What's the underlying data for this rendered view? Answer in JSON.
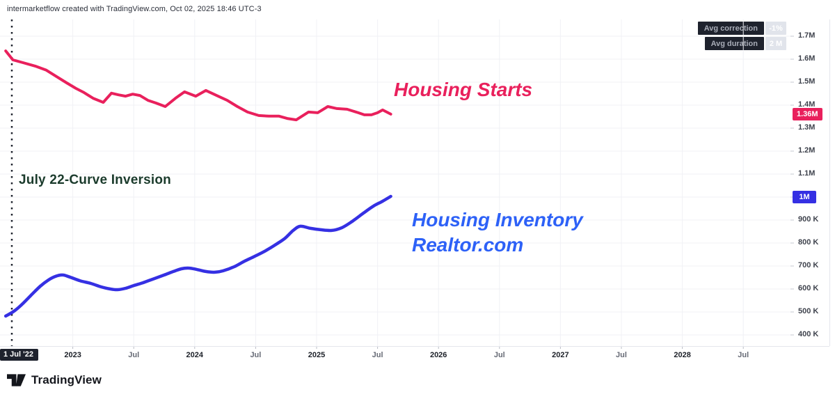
{
  "attribution": "intermarketflow created with TradingView.com, Oct 02, 2025 18:46 UTC-3",
  "stats_panel": {
    "rows": [
      {
        "label": "Avg correction",
        "value": "-1%"
      },
      {
        "label": "Avg duration",
        "value": "2 M"
      }
    ]
  },
  "annotations": {
    "housing_starts": "Housing Starts",
    "curve_inversion": "July 22-Curve Inversion",
    "housing_inventory_line1": "Housing Inventory",
    "housing_inventory_line2": "Realtor.com"
  },
  "colors": {
    "housing_starts": "#E9205C",
    "housing_inventory": "#3530E3",
    "inventory_label_text": "#2D61F7",
    "dark_badge": "#1E222D",
    "grid": "#f0f1f5"
  },
  "price_axis": {
    "labels": [
      {
        "text": "1.7M",
        "value_k": 1700
      },
      {
        "text": "1.6M",
        "value_k": 1600
      },
      {
        "text": "1.5M",
        "value_k": 1500
      },
      {
        "text": "1.4M",
        "value_k": 1400
      },
      {
        "text": "1.3M",
        "value_k": 1300
      },
      {
        "text": "1.2M",
        "value_k": 1200
      },
      {
        "text": "1.1M",
        "value_k": 1100
      },
      {
        "text": "900 K",
        "value_k": 900
      },
      {
        "text": "800 K",
        "value_k": 800
      },
      {
        "text": "700 K",
        "value_k": 700
      },
      {
        "text": "600 K",
        "value_k": 600
      },
      {
        "text": "500 K",
        "value_k": 500
      },
      {
        "text": "400 K",
        "value_k": 400
      }
    ],
    "badges": [
      {
        "text": "1.36M",
        "value_k": 1361,
        "color": "#E9205C",
        "series": "housing-starts"
      },
      {
        "text": "1M",
        "value_k": 1000,
        "color": "#3530E3",
        "series": "housing-inventory"
      }
    ]
  },
  "time_axis": {
    "event_badge": {
      "text": "1 Jul '22",
      "month": 0
    },
    "ticks": [
      {
        "label": "2023",
        "month": 6,
        "major": true
      },
      {
        "label": "Jul",
        "month": 12,
        "major": false
      },
      {
        "label": "2024",
        "month": 18,
        "major": true
      },
      {
        "label": "Jul",
        "month": 24,
        "major": false
      },
      {
        "label": "2025",
        "month": 30,
        "major": true
      },
      {
        "label": "Jul",
        "month": 36,
        "major": false
      },
      {
        "label": "2026",
        "month": 42,
        "major": true
      },
      {
        "label": "Jul",
        "month": 48,
        "major": false
      },
      {
        "label": "2027",
        "month": 54,
        "major": true
      },
      {
        "label": "Jul",
        "month": 60,
        "major": false
      },
      {
        "label": "2028",
        "month": 66,
        "major": true
      },
      {
        "label": "Jul",
        "month": 72,
        "major": false
      }
    ]
  },
  "logo": {
    "text": "TradingView"
  },
  "chart_data": {
    "type": "line",
    "x_unit": "months since 1 Jul 2022",
    "y_unit": "thousands of units",
    "ylim_k": [
      400,
      1700
    ],
    "grid": true,
    "vline": {
      "month": 0,
      "label": "1 Jul '22",
      "style": "dotted"
    },
    "series": [
      {
        "name": "Housing Starts",
        "color": "#E9205C",
        "smooth": false,
        "last_value_k": 1361,
        "points_month_valueK": [
          [
            -0.6,
            1636
          ],
          [
            0.1,
            1597
          ],
          [
            1.1,
            1585
          ],
          [
            2.3,
            1570
          ],
          [
            3.4,
            1552
          ],
          [
            4.3,
            1527
          ],
          [
            5.4,
            1497
          ],
          [
            6.3,
            1473
          ],
          [
            7.1,
            1455
          ],
          [
            8.0,
            1430
          ],
          [
            9.0,
            1412
          ],
          [
            9.8,
            1452
          ],
          [
            10.5,
            1445
          ],
          [
            11.2,
            1439
          ],
          [
            11.9,
            1448
          ],
          [
            12.6,
            1442
          ],
          [
            13.4,
            1421
          ],
          [
            14.2,
            1409
          ],
          [
            15.1,
            1394
          ],
          [
            16.2,
            1433
          ],
          [
            17.0,
            1458
          ],
          [
            18.1,
            1439
          ],
          [
            19.1,
            1464
          ],
          [
            20.3,
            1439
          ],
          [
            21.2,
            1421
          ],
          [
            22.2,
            1394
          ],
          [
            23.2,
            1370
          ],
          [
            24.3,
            1355
          ],
          [
            25.3,
            1352
          ],
          [
            26.3,
            1352
          ],
          [
            27.1,
            1342
          ],
          [
            28.0,
            1336
          ],
          [
            29.2,
            1370
          ],
          [
            30.1,
            1367
          ],
          [
            31.1,
            1394
          ],
          [
            32.0,
            1385
          ],
          [
            33.0,
            1382
          ],
          [
            34.1,
            1367
          ],
          [
            34.7,
            1358
          ],
          [
            35.4,
            1358
          ],
          [
            36.0,
            1367
          ],
          [
            36.5,
            1379
          ],
          [
            37.3,
            1361
          ]
        ]
      },
      {
        "name": "Housing Inventory Realtor.com",
        "color": "#3530E3",
        "smooth": true,
        "last_value_k": 1003,
        "points_month_valueK": [
          [
            -0.6,
            482
          ],
          [
            0.2,
            503
          ],
          [
            1.0,
            533
          ],
          [
            1.9,
            573
          ],
          [
            2.8,
            612
          ],
          [
            3.6,
            639
          ],
          [
            4.3,
            655
          ],
          [
            5.0,
            661
          ],
          [
            5.7,
            652
          ],
          [
            6.7,
            636
          ],
          [
            7.8,
            624
          ],
          [
            8.8,
            609
          ],
          [
            9.7,
            600
          ],
          [
            10.4,
            597
          ],
          [
            11.2,
            603
          ],
          [
            12.0,
            615
          ],
          [
            12.9,
            627
          ],
          [
            14.0,
            645
          ],
          [
            15.0,
            661
          ],
          [
            15.9,
            676
          ],
          [
            16.7,
            688
          ],
          [
            17.4,
            691
          ],
          [
            18.2,
            685
          ],
          [
            19.1,
            676
          ],
          [
            20.0,
            673
          ],
          [
            20.8,
            679
          ],
          [
            21.9,
            697
          ],
          [
            22.9,
            721
          ],
          [
            23.9,
            742
          ],
          [
            25.0,
            767
          ],
          [
            26.0,
            794
          ],
          [
            26.9,
            821
          ],
          [
            27.7,
            855
          ],
          [
            28.4,
            873
          ],
          [
            29.4,
            864
          ],
          [
            30.4,
            858
          ],
          [
            31.5,
            855
          ],
          [
            32.5,
            867
          ],
          [
            33.5,
            894
          ],
          [
            34.6,
            930
          ],
          [
            35.6,
            961
          ],
          [
            36.5,
            982
          ],
          [
            37.3,
            1003
          ]
        ]
      }
    ]
  }
}
